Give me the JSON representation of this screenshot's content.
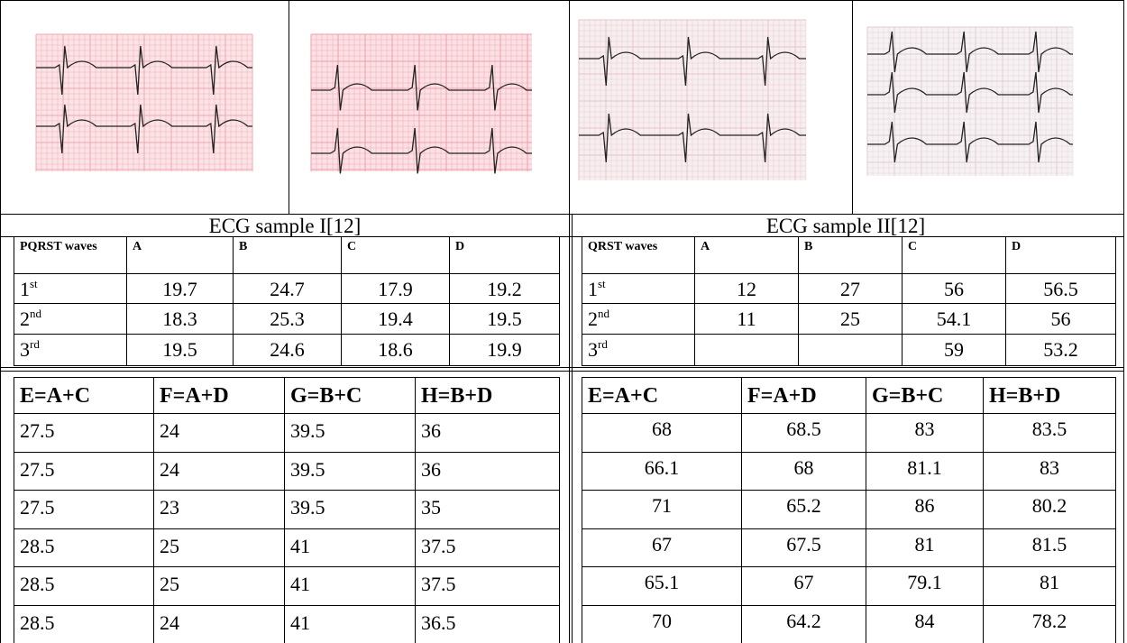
{
  "sample_1": {
    "caption": "ECG sample I[12]",
    "table": {
      "header": [
        "PQRST waves",
        "A",
        "B",
        "C",
        "D"
      ],
      "row_labels": [
        {
          "num": "1",
          "sup": "st"
        },
        {
          "num": "2",
          "sup": "nd"
        },
        {
          "num": "3",
          "sup": "rd"
        }
      ],
      "rows": [
        [
          19.7,
          24.7,
          17.9,
          19.2
        ],
        [
          18.3,
          25.3,
          19.4,
          19.5
        ],
        [
          19.5,
          24.6,
          18.6,
          19.9
        ]
      ]
    },
    "sums": {
      "header": [
        "E=A+C",
        "F=A+D",
        "G=B+C",
        "H=B+D"
      ],
      "rows": [
        [
          27.5,
          24,
          39.5,
          36
        ],
        [
          27.5,
          24,
          39.5,
          36
        ],
        [
          27.5,
          23,
          39.5,
          35
        ],
        [
          28.5,
          25,
          41,
          37.5
        ],
        [
          28.5,
          25,
          41,
          37.5
        ],
        [
          28.5,
          24,
          41,
          36.5
        ]
      ]
    }
  },
  "sample_2": {
    "caption": "ECG sample II[12]",
    "table": {
      "header": [
        "QRST waves",
        "A",
        "B",
        "C",
        "D"
      ],
      "row_labels": [
        {
          "num": "1",
          "sup": "st"
        },
        {
          "num": "2",
          "sup": "nd"
        },
        {
          "num": "3",
          "sup": "rd"
        }
      ],
      "rows": [
        [
          12,
          27,
          56,
          56.5
        ],
        [
          11,
          25,
          54.1,
          56
        ],
        [
          null,
          null,
          59,
          53.2
        ]
      ]
    },
    "sums": {
      "header": [
        "E=A+C",
        "F=A+D",
        "G=B+C",
        "H=B+D"
      ],
      "rows": [
        [
          68,
          68.5,
          83,
          83.5
        ],
        [
          66.1,
          68,
          81.1,
          83
        ],
        [
          71,
          65.2,
          86,
          80.2
        ],
        [
          67,
          67.5,
          81,
          81.5
        ],
        [
          65.1,
          67,
          79.1,
          81
        ],
        [
          70,
          64.2,
          84,
          78.2
        ]
      ]
    }
  }
}
